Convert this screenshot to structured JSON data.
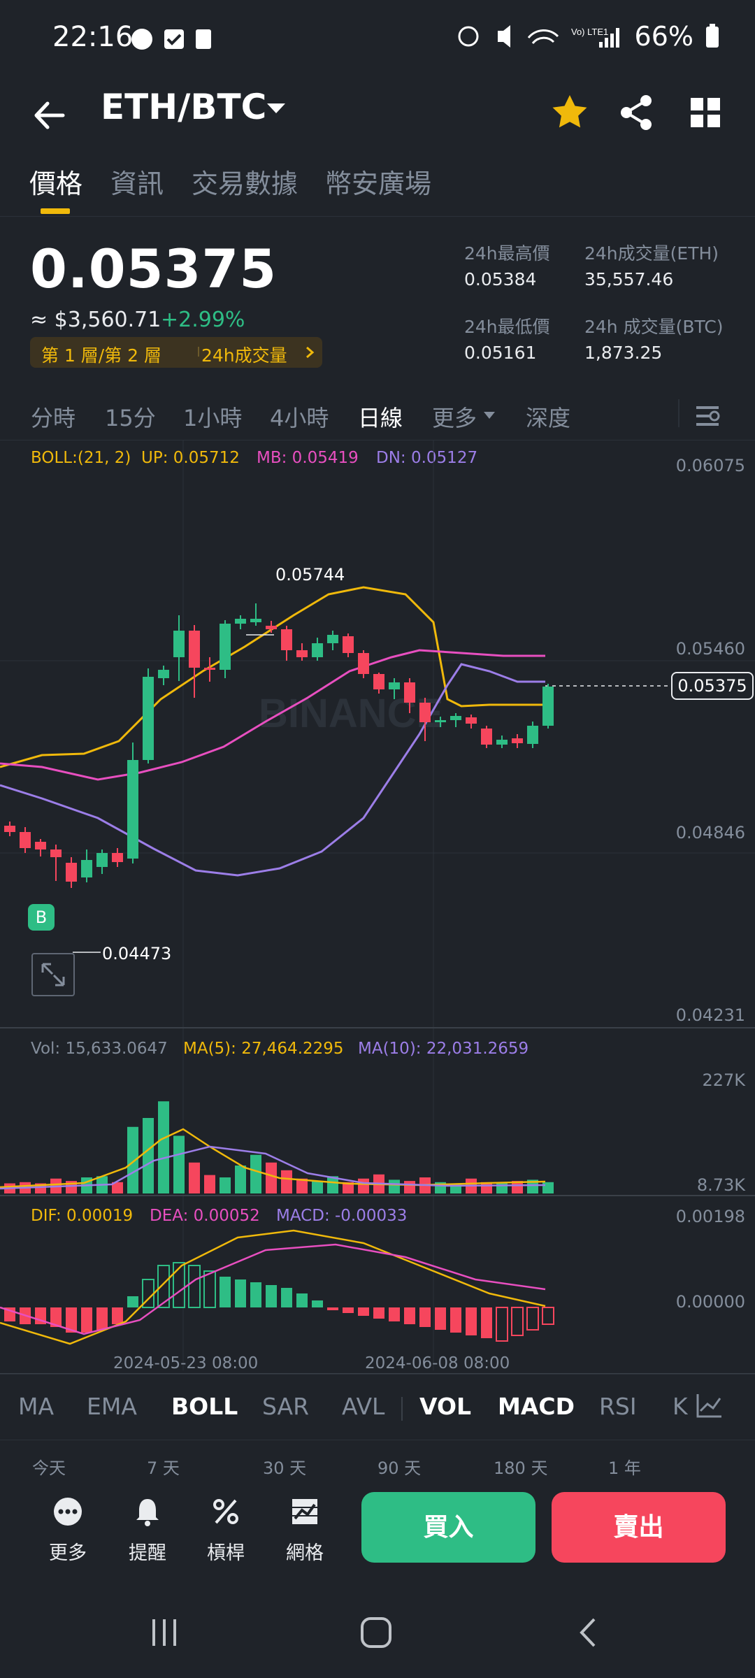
{
  "status": {
    "time": "22:16",
    "battery": "66%",
    "network": "Vo) LTE1"
  },
  "header": {
    "pair": "ETH/BTC"
  },
  "tabs": [
    {
      "label": "價格"
    },
    {
      "label": "資訊"
    },
    {
      "label": "交易數據"
    },
    {
      "label": "幣安廣場"
    }
  ],
  "ticker": {
    "price": "0.05375",
    "usd": "≈ $3,560.71",
    "change": "+2.99%",
    "layer": "第 1 層/第 2 層",
    "volume_tag": "24h成交量",
    "high_label": "24h最高價",
    "high": "0.05384",
    "low_label": "24h最低價",
    "low": "0.05161",
    "vol_eth_label": "24h成交量(ETH)",
    "vol_eth": "35,557.46",
    "vol_btc_label": "24h 成交量(BTC)",
    "vol_btc": "1,873.25"
  },
  "intervals": [
    "分時",
    "15分",
    "1小時",
    "4小時",
    "日線",
    "更多",
    "深度"
  ],
  "indicators": {
    "boll": "BOLL:(21, 2)",
    "up": "UP: 0.05712",
    "mb": "MB: 0.05419",
    "dn": "DN: 0.05127",
    "vol": "Vol: 15,633.0647",
    "ma5": "MA(5): 27,464.2295",
    "ma10": "MA(10): 22,031.2659",
    "dif": "DIF: 0.00019",
    "dea": "DEA: 0.00052",
    "macd": "MACD: -0.00033"
  },
  "chart_data": {
    "type": "candlestick",
    "price_axis": [
      "0.06075",
      "0.05460",
      "0.04846",
      "0.04231"
    ],
    "current_price": "0.05375",
    "high_marker": "0.05744",
    "low_marker": "0.04473",
    "vol_axis": [
      "227K",
      "8.73K"
    ],
    "macd_axis": [
      "0.00198",
      "0.00000"
    ],
    "x_labels": [
      "2024-05-23 08:00",
      "2024-06-08 08:00"
    ],
    "watermark": "BINANCE",
    "buy_marker": "B",
    "colors": {
      "up": "#2ebd85",
      "down": "#f6465d",
      "boll_up": "#f0b90b",
      "boll_mb": "#e84fc0",
      "boll_dn": "#9c7ee8"
    }
  },
  "bottom_indicators": [
    "MA",
    "EMA",
    "BOLL",
    "SAR",
    "AVL",
    "VOL",
    "MACD",
    "RSI",
    "K"
  ],
  "ranges": [
    "今天",
    "7 天",
    "30 天",
    "90 天",
    "180 天",
    "1 年"
  ],
  "tools": [
    {
      "label": "更多",
      "icon": "more-icon"
    },
    {
      "label": "提醒",
      "icon": "bell-icon"
    },
    {
      "label": "槓桿",
      "icon": "leverage-icon"
    },
    {
      "label": "網格",
      "icon": "grid-icon"
    }
  ],
  "buy_label": "買入",
  "sell_label": "賣出"
}
